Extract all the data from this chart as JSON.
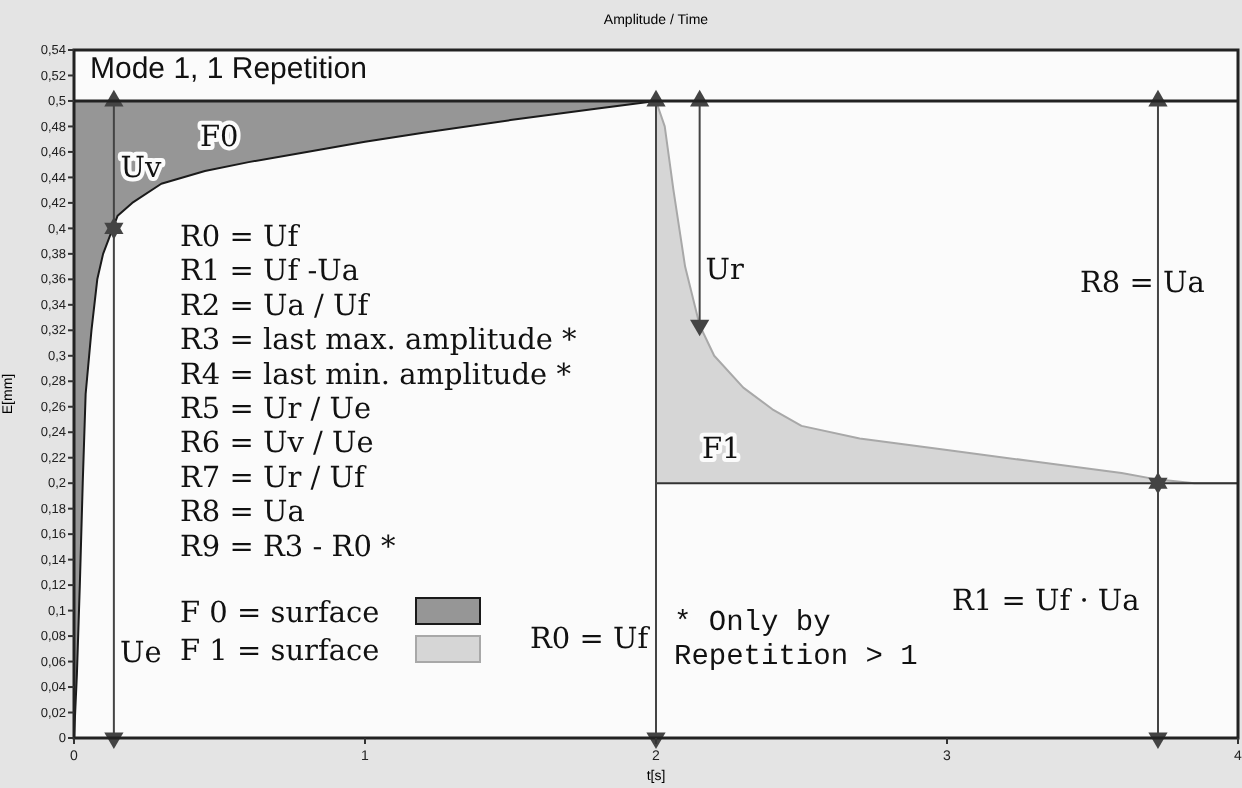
{
  "chart_data": {
    "type": "line",
    "title": "Amplitude / Time",
    "subtitle": "Mode 1, 1 Repetition",
    "xlabel": "t[s]",
    "ylabel": "E[mm]",
    "xlim": [
      0,
      4
    ],
    "xticks": [
      0,
      1,
      2,
      3,
      4
    ],
    "ylim": [
      0,
      0.54
    ],
    "yticks": [
      0,
      {
        "value": 0.02,
        "label": "0,02"
      },
      {
        "value": 0.04,
        "label": "0,04"
      },
      {
        "value": 0.06,
        "label": "0,06"
      },
      {
        "value": 0.08,
        "label": "0,08"
      },
      {
        "value": 0.1,
        "label": "0,1"
      },
      {
        "value": 0.12,
        "label": "0,12"
      },
      {
        "value": 0.14,
        "label": "0,14"
      },
      {
        "value": 0.16,
        "label": "0,16"
      },
      {
        "value": 0.18,
        "label": "0,18"
      },
      {
        "value": 0.2,
        "label": "0,2"
      },
      {
        "value": 0.22,
        "label": "0,22"
      },
      {
        "value": 0.24,
        "label": "0,24"
      },
      {
        "value": 0.26,
        "label": "0,26"
      },
      {
        "value": 0.28,
        "label": "0,28"
      },
      {
        "value": 0.3,
        "label": "0,3"
      },
      {
        "value": 0.32,
        "label": "0,32"
      },
      {
        "value": 0.34,
        "label": "0,34"
      },
      {
        "value": 0.36,
        "label": "0,36"
      },
      {
        "value": 0.38,
        "label": "0,38"
      },
      {
        "value": 0.4,
        "label": "0,4"
      },
      {
        "value": 0.42,
        "label": "0,42"
      },
      {
        "value": 0.44,
        "label": "0,44"
      },
      {
        "value": 0.46,
        "label": "0,46"
      },
      {
        "value": 0.48,
        "label": "0,48"
      },
      {
        "value": 0.5,
        "label": "0,5"
      },
      {
        "value": 0.52,
        "label": "0,52"
      },
      {
        "value": 0.54,
        "label": "0,54"
      }
    ],
    "grid": false,
    "legend": "bottom left",
    "ref_lines": [
      {
        "axis": "y",
        "value": 0.5,
        "color": "#222222"
      }
    ],
    "series": [
      {
        "name": "F 0 = surface",
        "color": "#1a1a1a",
        "marker": "none",
        "x": [
          0,
          0.01,
          0.02,
          0.03,
          0.04,
          0.06,
          0.08,
          0.1,
          0.15,
          0.2,
          0.3,
          0.45,
          0.6,
          0.8,
          1.0,
          1.2,
          1.5,
          1.8,
          2.0
        ],
        "values": [
          0,
          0.05,
          0.12,
          0.2,
          0.27,
          0.32,
          0.36,
          0.38,
          0.41,
          0.42,
          0.435,
          0.445,
          0.452,
          0.46,
          0.468,
          0.475,
          0.485,
          0.494,
          0.5
        ],
        "lower": [
          0,
          0.05,
          0.12,
          0.2,
          0.27,
          0.32,
          0.36,
          0.38,
          0.41,
          0.42,
          0.435,
          0.445,
          0.452,
          0.46,
          0.468,
          0.475,
          0.485,
          0.494,
          0.5
        ],
        "upper": [
          0.5,
          0.5,
          0.5,
          0.5,
          0.5,
          0.5,
          0.5,
          0.5,
          0.5,
          0.5,
          0.5,
          0.5,
          0.5,
          0.5,
          0.5,
          0.5,
          0.5,
          0.5,
          0.5
        ]
      },
      {
        "name": "F 1 = surface",
        "color": "#a8a8a8",
        "marker": "none",
        "x": [
          2.0,
          2.03,
          2.06,
          2.1,
          2.15,
          2.2,
          2.3,
          2.4,
          2.5,
          2.7,
          3.0,
          3.3,
          3.6,
          3.72,
          3.85,
          4.0
        ],
        "values": [
          0.5,
          0.48,
          0.43,
          0.37,
          0.324,
          0.3,
          0.275,
          0.258,
          0.245,
          0.235,
          0.226,
          0.217,
          0.208,
          0.203,
          0.2,
          0.2
        ],
        "lower": [
          0.2,
          0.2,
          0.2,
          0.2,
          0.2,
          0.2,
          0.2,
          0.2,
          0.2,
          0.2,
          0.2,
          0.2,
          0.2,
          0.2,
          0.2,
          0.2
        ],
        "upper": [
          0.5,
          0.48,
          0.43,
          0.37,
          0.324,
          0.3,
          0.275,
          0.258,
          0.245,
          0.235,
          0.226,
          0.217,
          0.208,
          0.203,
          0.2,
          0.2
        ]
      },
      {
        "color": "#333333",
        "marker": "none",
        "x": [
          2,
          4
        ],
        "values": [
          0.2,
          0.2
        ]
      },
      {
        "color": "#444444",
        "marker": "triangle",
        "x": [
          0.137,
          0.137
        ],
        "values": [
          0.4,
          0.5
        ]
      },
      {
        "color": "#444444",
        "marker": "triangle",
        "x": [
          0.137,
          0.137
        ],
        "values": [
          0,
          0.4
        ]
      },
      {
        "color": "#444444",
        "marker": "triangle",
        "x": [
          2.15,
          2.15
        ],
        "values": [
          0.5,
          0.324
        ]
      },
      {
        "color": "#444444",
        "marker": "triangle",
        "x": [
          2,
          2
        ],
        "values": [
          0,
          0.5
        ]
      },
      {
        "color": "#444444",
        "marker": "triangle",
        "x": [
          3.725,
          3.725
        ],
        "values": [
          0.2,
          0.5
        ]
      },
      {
        "color": "#444444",
        "marker": "triangle",
        "x": [
          3.725,
          3.725
        ],
        "values": [
          0,
          0.2
        ]
      }
    ],
    "annotations": [
      "R0 = Uf",
      "R1 = Uf -Ua",
      "R2 = Ua / Uf",
      "R3 = last max. amplitude *",
      "R4 = last min. amplitude *",
      "R5 = Ur / Ue",
      "R6 = Uv / Ue",
      "R7 = Ur / Uf",
      "R8 = Ua",
      "R9 = R3 - R0 *",
      "F0",
      "Ue",
      "F1",
      "R0 = Uf",
      "R8 = Ua",
      "R1 = Uf · Ua",
      "* Only by Repetition > 1",
      {
        "text": "Uv",
        "x": 0.16,
        "y": 0.44
      },
      {
        "text": "Ur",
        "x": 2.17,
        "y": 0.36
      }
    ]
  }
}
